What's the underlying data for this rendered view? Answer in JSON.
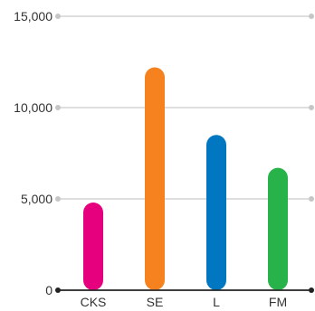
{
  "chart_data": {
    "type": "bar",
    "categories": [
      "CKS",
      "SE",
      "L",
      "FM"
    ],
    "values": [
      4800,
      12200,
      8500,
      6700
    ],
    "colors": [
      "#e6007e",
      "#f5821f",
      "#0077c0",
      "#27b24a"
    ],
    "ylim": [
      0,
      15000
    ],
    "yticks": [
      0,
      5000,
      10000,
      15000
    ],
    "ytick_labels": [
      "0",
      "5,000",
      "10,000",
      "15,000"
    ],
    "grid": true,
    "legend": "none"
  }
}
